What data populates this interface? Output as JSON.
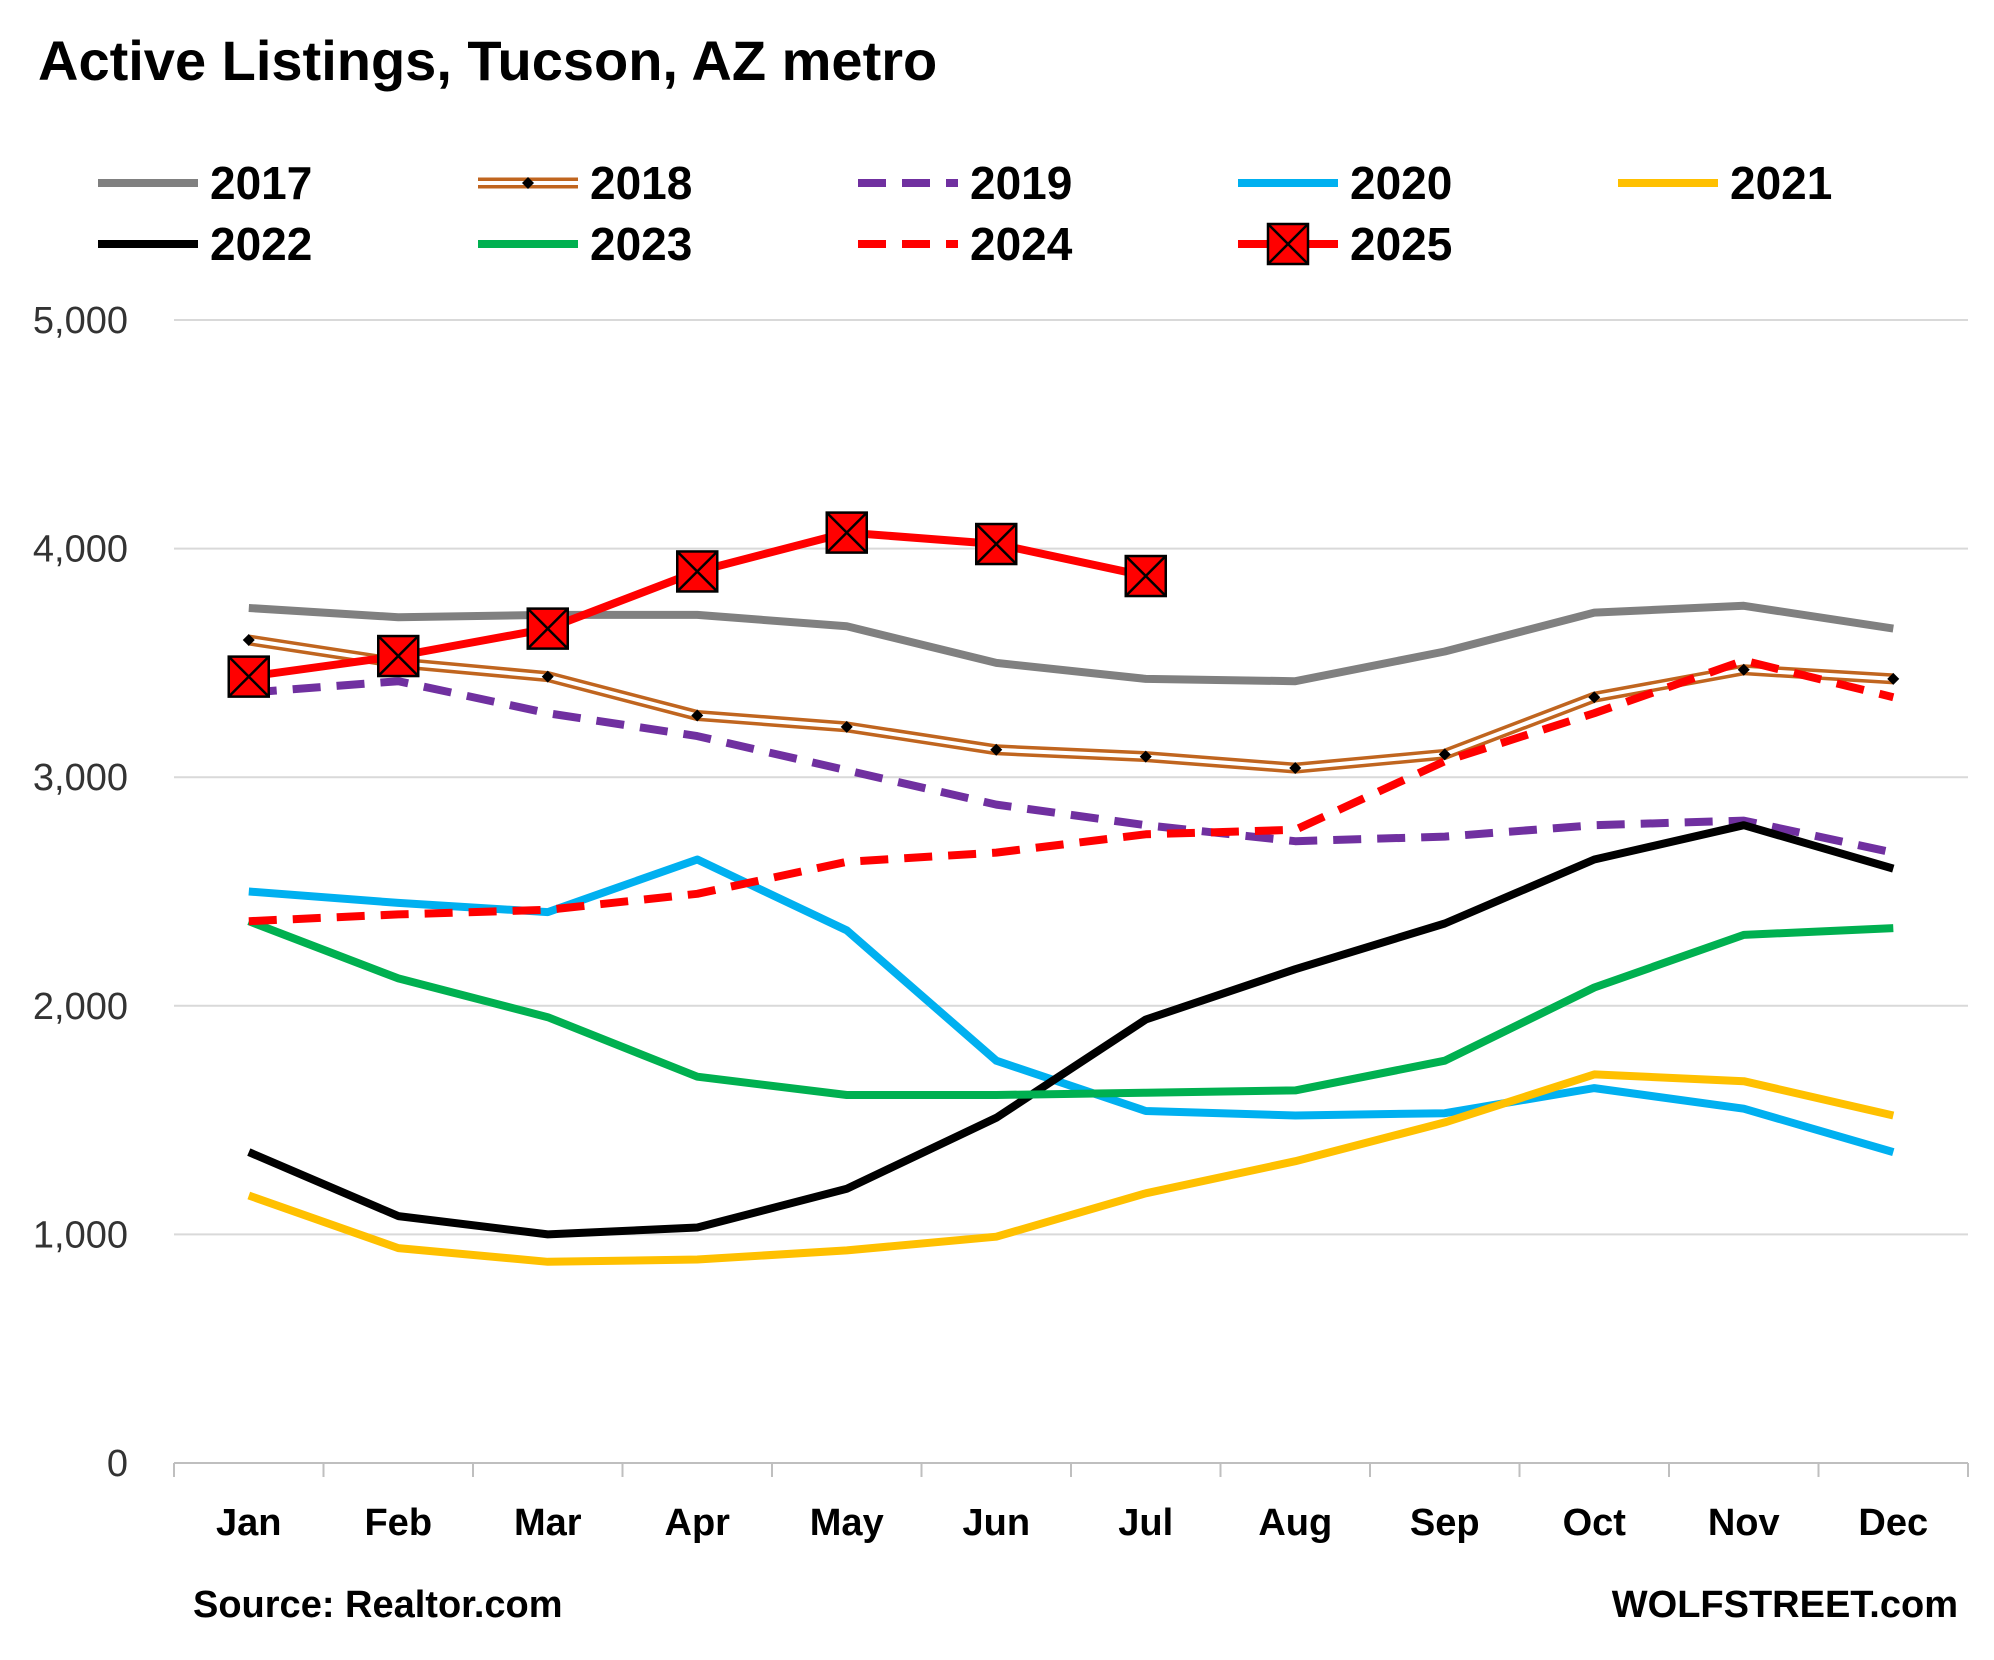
{
  "chart_data": {
    "type": "line",
    "title": "Active Listings, Tucson, AZ metro",
    "source": "Source: Realtor.com",
    "credit": "WOLFSTREET.com",
    "categories": [
      "Jan",
      "Feb",
      "Mar",
      "Apr",
      "May",
      "Jun",
      "Jul",
      "Aug",
      "Sep",
      "Oct",
      "Nov",
      "Dec"
    ],
    "ylim": [
      0,
      5000
    ],
    "yticks": [
      0,
      1000,
      2000,
      3000,
      4000,
      5000
    ],
    "ytick_labels": [
      "0",
      "1,000",
      "2,000",
      "3,000",
      "4,000",
      "5,000"
    ],
    "grid": true,
    "legend_position": "top",
    "series": [
      {
        "name": "2017",
        "color": "#808080",
        "style": "solid",
        "marker": "none",
        "values": [
          3740,
          3700,
          3710,
          3710,
          3660,
          3500,
          3430,
          3420,
          3550,
          3720,
          3750,
          3650
        ]
      },
      {
        "name": "2018",
        "color": "#c0651f",
        "style": "double",
        "marker": "diamond",
        "values": [
          3600,
          3500,
          3440,
          3270,
          3220,
          3120,
          3090,
          3040,
          3100,
          3350,
          3470,
          3430
        ]
      },
      {
        "name": "2019",
        "color": "#7030a0",
        "style": "dashed",
        "marker": "none",
        "values": [
          3370,
          3420,
          3280,
          3180,
          3030,
          2880,
          2790,
          2720,
          2740,
          2790,
          2810,
          2670
        ]
      },
      {
        "name": "2020",
        "color": "#00b0f0",
        "style": "solid",
        "marker": "none",
        "values": [
          2500,
          2450,
          2410,
          2640,
          2330,
          1760,
          1540,
          1520,
          1530,
          1640,
          1550,
          1360
        ]
      },
      {
        "name": "2021",
        "color": "#ffc000",
        "style": "solid",
        "marker": "none",
        "values": [
          1170,
          940,
          880,
          890,
          930,
          990,
          1180,
          1320,
          1490,
          1700,
          1670,
          1520
        ]
      },
      {
        "name": "2022",
        "color": "#000000",
        "style": "solid",
        "marker": "none",
        "values": [
          1360,
          1080,
          1000,
          1030,
          1200,
          1510,
          1940,
          2160,
          2360,
          2640,
          2790,
          2600
        ]
      },
      {
        "name": "2023",
        "color": "#00b050",
        "style": "solid",
        "marker": "none",
        "values": [
          2370,
          2120,
          1950,
          1690,
          1610,
          1610,
          1620,
          1630,
          1760,
          2080,
          2310,
          2340
        ]
      },
      {
        "name": "2024",
        "color": "#ff0000",
        "style": "dashed",
        "marker": "none",
        "values": [
          2370,
          2400,
          2420,
          2490,
          2630,
          2670,
          2750,
          2770,
          3070,
          3280,
          3510,
          3350
        ]
      },
      {
        "name": "2025",
        "color": "#ff0000",
        "style": "solid",
        "marker": "square-x",
        "values": [
          3440,
          3530,
          3650,
          3900,
          4070,
          4020,
          3880,
          null,
          null,
          null,
          null,
          null
        ]
      }
    ]
  }
}
